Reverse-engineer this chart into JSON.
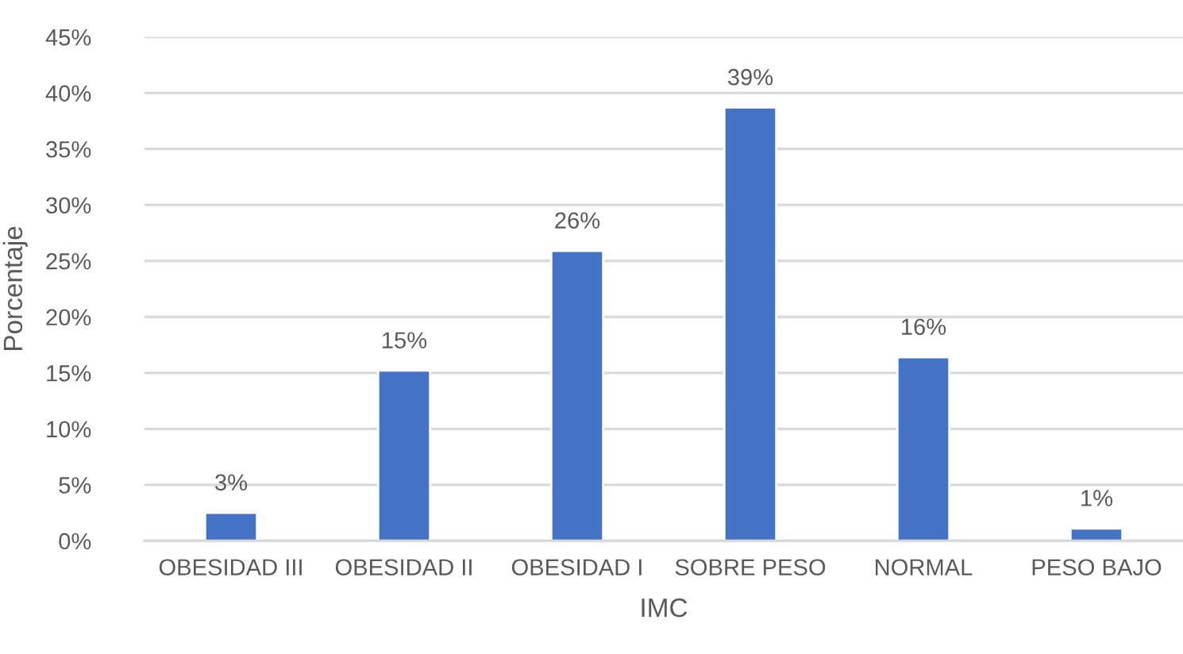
{
  "chart_data": {
    "type": "bar",
    "xlabel": "IMC",
    "ylabel": "Porcentaje",
    "categories": [
      "OBESIDAD III",
      "OBESIDAD II",
      "OBESIDAD I",
      "SOBRE PESO",
      "NORMAL",
      "PESO BAJO"
    ],
    "values": [
      2.5,
      15.2,
      25.9,
      38.7,
      16.4,
      1.1
    ],
    "value_labels": [
      "3%",
      "15%",
      "26%",
      "39%",
      "16%",
      "1%"
    ],
    "color": "#4472c4",
    "ylim": [
      0,
      45
    ],
    "yticks": [
      {
        "value": 0,
        "label": "0%"
      },
      {
        "value": 5,
        "label": "5%"
      },
      {
        "value": 10,
        "label": "10%"
      },
      {
        "value": 15,
        "label": "15%"
      },
      {
        "value": 20,
        "label": "20%"
      },
      {
        "value": 25,
        "label": "25%"
      },
      {
        "value": 30,
        "label": "30%"
      },
      {
        "value": 35,
        "label": "35%"
      },
      {
        "value": 40,
        "label": "40%"
      },
      {
        "value": 45,
        "label": "45%"
      }
    ],
    "grid": "y"
  }
}
